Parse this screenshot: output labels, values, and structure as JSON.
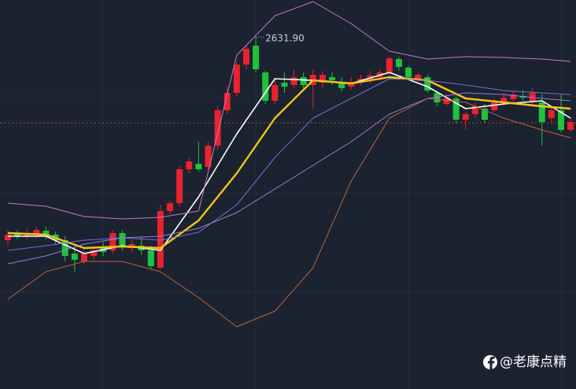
{
  "chart_data": {
    "type": "candlestick",
    "ylim": [
      2408.4,
      2655.4
    ],
    "up_color": "#e8232f",
    "down_color": "#1fc23c",
    "price_line": 2577.4,
    "price_line_color": "#c0404a",
    "annotation": {
      "label": "2631.90",
      "value": 2631.9
    },
    "watermark": "@老康点精",
    "open": [
      2502.9,
      2507.4,
      2505.4,
      2506.4,
      2508.9,
      2506.4,
      2502.9,
      2494.4,
      2489.4,
      2492.9,
      2497.9,
      2496.4,
      2507.4,
      2497.9,
      2499.4,
      2496.4,
      2485.4,
      2521.4,
      2526.4,
      2547.9,
      2551.4,
      2549.4,
      2562.9,
      2585.4,
      2596.4,
      2614.4,
      2626.4,
      2609.4,
      2591.4,
      2602.9,
      2601.4,
      2606.4,
      2601.4,
      2602.9,
      2606.4,
      2603.4,
      2600.4,
      2602.9,
      2604.4,
      2606.4,
      2609.4,
      2617.9,
      2612.4,
      2605.4,
      2606.4,
      2596.4,
      2589.4,
      2592.9,
      2579.4,
      2582.9,
      2586.4,
      2585.4,
      2590.4,
      2592.4,
      2594.4,
      2590.4,
      2590.4,
      2580.4,
      2585.4,
      2572.9
    ],
    "high": [
      2509.4,
      2509.4,
      2510.4,
      2511.4,
      2511.4,
      2508.4,
      2505.4,
      2496.4,
      2496.4,
      2499.4,
      2501.4,
      2509.4,
      2509.4,
      2502.9,
      2505.4,
      2499.4,
      2525.4,
      2527.9,
      2550.4,
      2555.4,
      2565.4,
      2565.4,
      2587.9,
      2600.4,
      2616.4,
      2626.4,
      2631.9,
      2610.4,
      2605.4,
      2609.4,
      2611.4,
      2609.4,
      2611.4,
      2610.4,
      2609.4,
      2606.4,
      2606.4,
      2607.9,
      2610.4,
      2611.4,
      2619.4,
      2619.4,
      2613.4,
      2609.4,
      2607.9,
      2597.9,
      2595.4,
      2594.4,
      2584.4,
      2590.4,
      2589.4,
      2592.9,
      2596.4,
      2597.9,
      2597.9,
      2599.4,
      2595.4,
      2587.9,
      2595.4,
      2580.4
    ],
    "low": [
      2499.4,
      2503.4,
      2503.4,
      2504.4,
      2503.4,
      2500.4,
      2489.4,
      2482.9,
      2487.4,
      2490.4,
      2492.9,
      2494.4,
      2496.4,
      2495.4,
      2493.4,
      2484.4,
      2484.4,
      2519.4,
      2524.4,
      2545.4,
      2546.4,
      2547.9,
      2560.4,
      2582.9,
      2594.4,
      2611.4,
      2609.4,
      2589.4,
      2589.4,
      2596.4,
      2599.4,
      2599.4,
      2586.4,
      2599.4,
      2601.4,
      2597.4,
      2598.4,
      2601.4,
      2602.4,
      2604.4,
      2607.4,
      2610.4,
      2605.4,
      2603.4,
      2596.4,
      2587.9,
      2587.9,
      2577.4,
      2572.9,
      2580.4,
      2577.4,
      2584.4,
      2588.4,
      2590.4,
      2591.4,
      2588.4,
      2562.9,
      2577.9,
      2571.4,
      2571.4
    ],
    "close": [
      2506.4,
      2505.4,
      2507.4,
      2509.4,
      2506.4,
      2502.9,
      2492.9,
      2490.4,
      2494.4,
      2496.4,
      2495.4,
      2507.4,
      2499.4,
      2500.4,
      2496.4,
      2486.4,
      2521.4,
      2526.4,
      2547.9,
      2552.9,
      2547.9,
      2562.9,
      2585.4,
      2596.4,
      2614.4,
      2624.4,
      2611.4,
      2591.4,
      2601.4,
      2600.4,
      2606.4,
      2601.4,
      2607.9,
      2607.9,
      2604.4,
      2599.4,
      2603.4,
      2605.4,
      2607.4,
      2609.4,
      2618.4,
      2612.9,
      2606.4,
      2607.9,
      2597.9,
      2590.4,
      2592.9,
      2579.4,
      2582.9,
      2587.9,
      2579.4,
      2590.4,
      2593.4,
      2595.4,
      2593.4,
      2596.4,
      2577.9,
      2585.4,
      2572.9,
      2577.9
    ],
    "lines": [
      {
        "color": "#ffffff",
        "width": 1.6,
        "x": [
          0,
          4,
          8,
          12,
          16,
          20,
          24,
          28,
          32,
          36,
          40,
          44,
          48,
          52,
          56,
          59
        ],
        "values": [
          2505.4,
          2505.4,
          2494.4,
          2499.4,
          2496.4,
          2530.4,
          2570.4,
          2605.4,
          2604.4,
          2602.4,
          2609.4,
          2600.4,
          2586.4,
          2589.4,
          2591.4,
          2580.4
        ]
      },
      {
        "color": "#f5c518",
        "width": 2.4,
        "x": [
          0,
          4,
          8,
          12,
          16,
          20,
          24,
          28,
          32,
          36,
          40,
          44,
          48,
          52,
          56,
          59
        ],
        "values": [
          2507.4,
          2506.4,
          2497.9,
          2498.9,
          2497.9,
          2515.4,
          2545.4,
          2580.4,
          2604.4,
          2602.4,
          2606.4,
          2604.4,
          2592.9,
          2590.4,
          2587.9,
          2586.4
        ]
      },
      {
        "color": "#6f73d8",
        "width": 1,
        "x": [
          0,
          4,
          8,
          12,
          16,
          20,
          24,
          28,
          32,
          36,
          40,
          44,
          48,
          52,
          56,
          59
        ],
        "values": [
          2496.4,
          2499.4,
          2502.9,
          2504.4,
          2502.9,
          2507.9,
          2525.4,
          2555.4,
          2580.4,
          2592.9,
          2605.4,
          2604.4,
          2601.4,
          2597.9,
          2596.4,
          2595.4
        ]
      },
      {
        "color": "#9b7fd0",
        "width": 1,
        "x": [
          0,
          4,
          8,
          12,
          16,
          20,
          24,
          28,
          32,
          36,
          40,
          44,
          48,
          52,
          56,
          59
        ],
        "values": [
          2487.9,
          2492.9,
          2500.4,
          2504.4,
          2505.4,
          2510.4,
          2520.4,
          2535.4,
          2550.4,
          2565.4,
          2582.9,
          2592.9,
          2596.4,
          2595.4,
          2592.9,
          2591.4
        ]
      },
      {
        "color": "#c77ac8",
        "width": 1,
        "x": [
          0,
          4,
          8,
          12,
          16,
          20,
          24,
          28,
          32,
          36,
          40,
          44,
          48,
          52,
          56,
          59
        ],
        "values": [
          2526.4,
          2524.4,
          2517.9,
          2516.4,
          2517.4,
          2521.4,
          2620.4,
          2645.4,
          2654.4,
          2640.4,
          2622.9,
          2617.9,
          2619.4,
          2618.9,
          2617.9,
          2616.4
        ]
      },
      {
        "color": "#b8663a",
        "width": 1,
        "x": [
          0,
          4,
          8,
          12,
          16,
          20,
          24,
          28,
          32,
          36,
          40,
          44,
          48,
          52,
          56,
          59
        ],
        "values": [
          2465.4,
          2482.9,
          2489.4,
          2489.4,
          2482.9,
          2466.4,
          2447.9,
          2457.9,
          2485.4,
          2540.4,
          2580.4,
          2592.9,
          2590.4,
          2580.4,
          2572.9,
          2567.9
        ]
      }
    ]
  }
}
